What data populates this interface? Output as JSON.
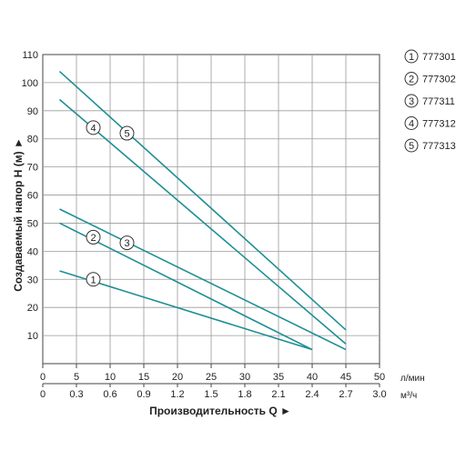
{
  "chart_data": {
    "type": "line",
    "xlabel": "Производительность Q ►",
    "ylabel": "Создаваемый напор H (м) ►",
    "x_unit_primary": "л/мин",
    "x_unit_secondary": "м³/ч",
    "xlim": [
      0,
      50
    ],
    "ylim": [
      0,
      110
    ],
    "x_ticks": [
      "0",
      "5",
      "10",
      "15",
      "20",
      "25",
      "30",
      "35",
      "40",
      "45",
      "50"
    ],
    "x2_ticks": [
      "0",
      "0.3",
      "0.6",
      "0.9",
      "1.2",
      "1.5",
      "1.8",
      "2.1",
      "2.4",
      "2.7",
      "3.0"
    ],
    "y_ticks": [
      "10",
      "20",
      "30",
      "40",
      "50",
      "60",
      "70",
      "80",
      "90",
      "100",
      "110"
    ],
    "grid": true,
    "legend_position": "right",
    "line_color": "#1e8f95",
    "series": [
      {
        "name": "777301",
        "marker": "1",
        "x": [
          2.5,
          40
        ],
        "y": [
          33,
          5
        ],
        "marker_at": [
          7.5,
          30
        ]
      },
      {
        "name": "777302",
        "marker": "2",
        "x": [
          2.5,
          40
        ],
        "y": [
          50,
          5
        ],
        "marker_at": [
          7.5,
          45
        ]
      },
      {
        "name": "777311",
        "marker": "3",
        "x": [
          2.5,
          45
        ],
        "y": [
          55,
          5
        ],
        "marker_at": [
          12.5,
          43
        ]
      },
      {
        "name": "777312",
        "marker": "4",
        "x": [
          2.5,
          45
        ],
        "y": [
          94,
          7
        ],
        "marker_at": [
          7.5,
          84
        ]
      },
      {
        "name": "777313",
        "marker": "5",
        "x": [
          2.5,
          45
        ],
        "y": [
          104,
          12
        ],
        "marker_at": [
          12.5,
          82
        ]
      }
    ]
  }
}
